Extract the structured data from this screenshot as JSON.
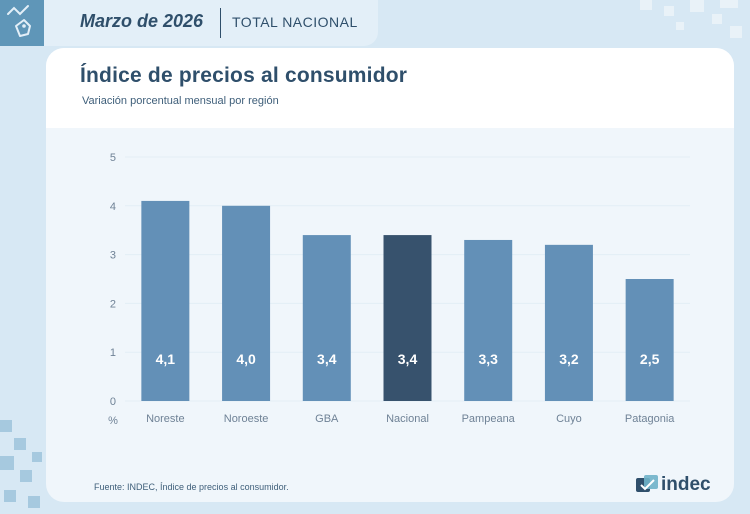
{
  "header": {
    "period": "Marzo de 2026",
    "scope": "TOTAL NACIONAL"
  },
  "title": "Índice de precios al consumidor",
  "subtitle": "Variación porcentual mensual por región",
  "source": "Fuente: INDEC, Índice de precios al consumidor.",
  "brand": "indec",
  "colors": {
    "bar": "#6390b7",
    "highlight": "#37526d",
    "axis_text": "#6f8296",
    "gridline": "#e3eef6"
  },
  "chart_data": {
    "type": "bar",
    "categories": [
      "Noreste",
      "Noroeste",
      "GBA",
      "Nacional",
      "Pampeana",
      "Cuyo",
      "Patagonia"
    ],
    "values": [
      4.1,
      4.0,
      3.4,
      3.4,
      3.3,
      3.2,
      2.5
    ],
    "value_labels": [
      "4,1",
      "4,0",
      "3,4",
      "3,4",
      "3,3",
      "3,2",
      "2,5"
    ],
    "highlight": "Nacional",
    "ylabel": "%",
    "ylim": [
      0,
      5
    ],
    "yticks": [
      0,
      1,
      2,
      3,
      4,
      5
    ]
  }
}
